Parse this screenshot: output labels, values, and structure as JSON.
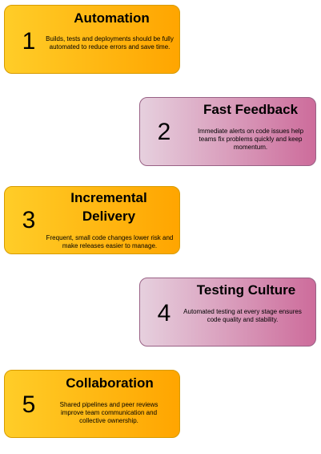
{
  "cards": [
    {
      "number": "1",
      "title": "Automation",
      "description": "Builds, tests and deployments should be fully automated to reduce errors and save time.",
      "style": "orange"
    },
    {
      "number": "2",
      "title": "Fast Feedback",
      "description": "Immediate alerts on code issues help teams fix problems quickly and keep momentum.",
      "style": "pink"
    },
    {
      "number": "3",
      "title": "Incremental Delivery",
      "description": "Frequent, small code changes lower risk and make releases easier to manage.",
      "style": "orange"
    },
    {
      "number": "4",
      "title": "Testing Culture",
      "description": "Automated testing at every stage ensures code quality and stability.",
      "style": "pink"
    },
    {
      "number": "5",
      "title": "Collaboration",
      "description": "Shared pipelines and peer reviews improve team communication and collective ownership.",
      "style": "orange"
    }
  ],
  "colors": {
    "orange_start": "#ffcd28",
    "orange_end": "#ffa500",
    "orange_border": "#d79b00",
    "pink_start": "#e6d0de",
    "pink_end": "#cd6c9b",
    "pink_border": "#996185"
  }
}
